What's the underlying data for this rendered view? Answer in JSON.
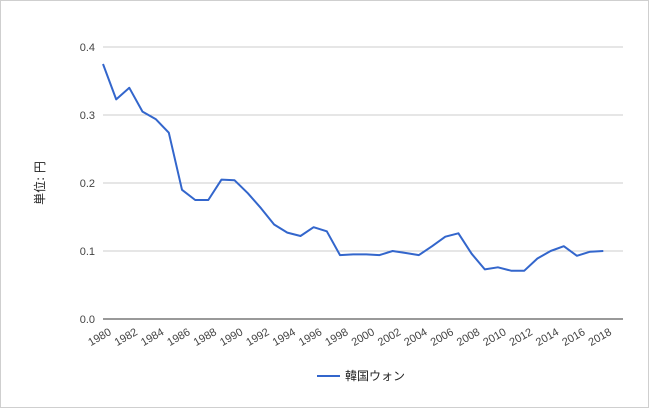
{
  "chart_data": {
    "type": "line",
    "ylabel": "単位: 円",
    "ylim": [
      0,
      0.4
    ],
    "yticks": [
      "0.0",
      "0.1",
      "0.2",
      "0.3",
      "0.4"
    ],
    "ytick_values": [
      0,
      0.1,
      0.2,
      0.3,
      0.4
    ],
    "xticks": [
      "1980",
      "1982",
      "1984",
      "1986",
      "1988",
      "1990",
      "1992",
      "1994",
      "1996",
      "1998",
      "2000",
      "2002",
      "2004",
      "2006",
      "2008",
      "2010",
      "2012",
      "2014",
      "2016",
      "2018"
    ],
    "grid": true,
    "legend_position": "bottom",
    "series": [
      {
        "name": "韓国ウォン",
        "color": "#3366cc",
        "x": [
          1980,
          1981,
          1982,
          1983,
          1984,
          1985,
          1986,
          1987,
          1988,
          1989,
          1990,
          1991,
          1992,
          1993,
          1994,
          1995,
          1996,
          1997,
          1998,
          1999,
          2000,
          2001,
          2002,
          2003,
          2004,
          2005,
          2006,
          2007,
          2008,
          2009,
          2010,
          2011,
          2012,
          2013,
          2014,
          2015,
          2016,
          2017,
          2018
        ],
        "y": [
          0.375,
          0.323,
          0.34,
          0.305,
          0.294,
          0.274,
          0.19,
          0.175,
          0.175,
          0.205,
          0.204,
          0.185,
          0.163,
          0.139,
          0.127,
          0.122,
          0.135,
          0.129,
          0.094,
          0.095,
          0.095,
          0.094,
          0.1,
          0.097,
          0.094,
          0.107,
          0.121,
          0.126,
          0.096,
          0.073,
          0.076,
          0.071,
          0.071,
          0.089,
          0.1,
          0.107,
          0.093,
          0.099,
          0.1
        ]
      }
    ]
  }
}
